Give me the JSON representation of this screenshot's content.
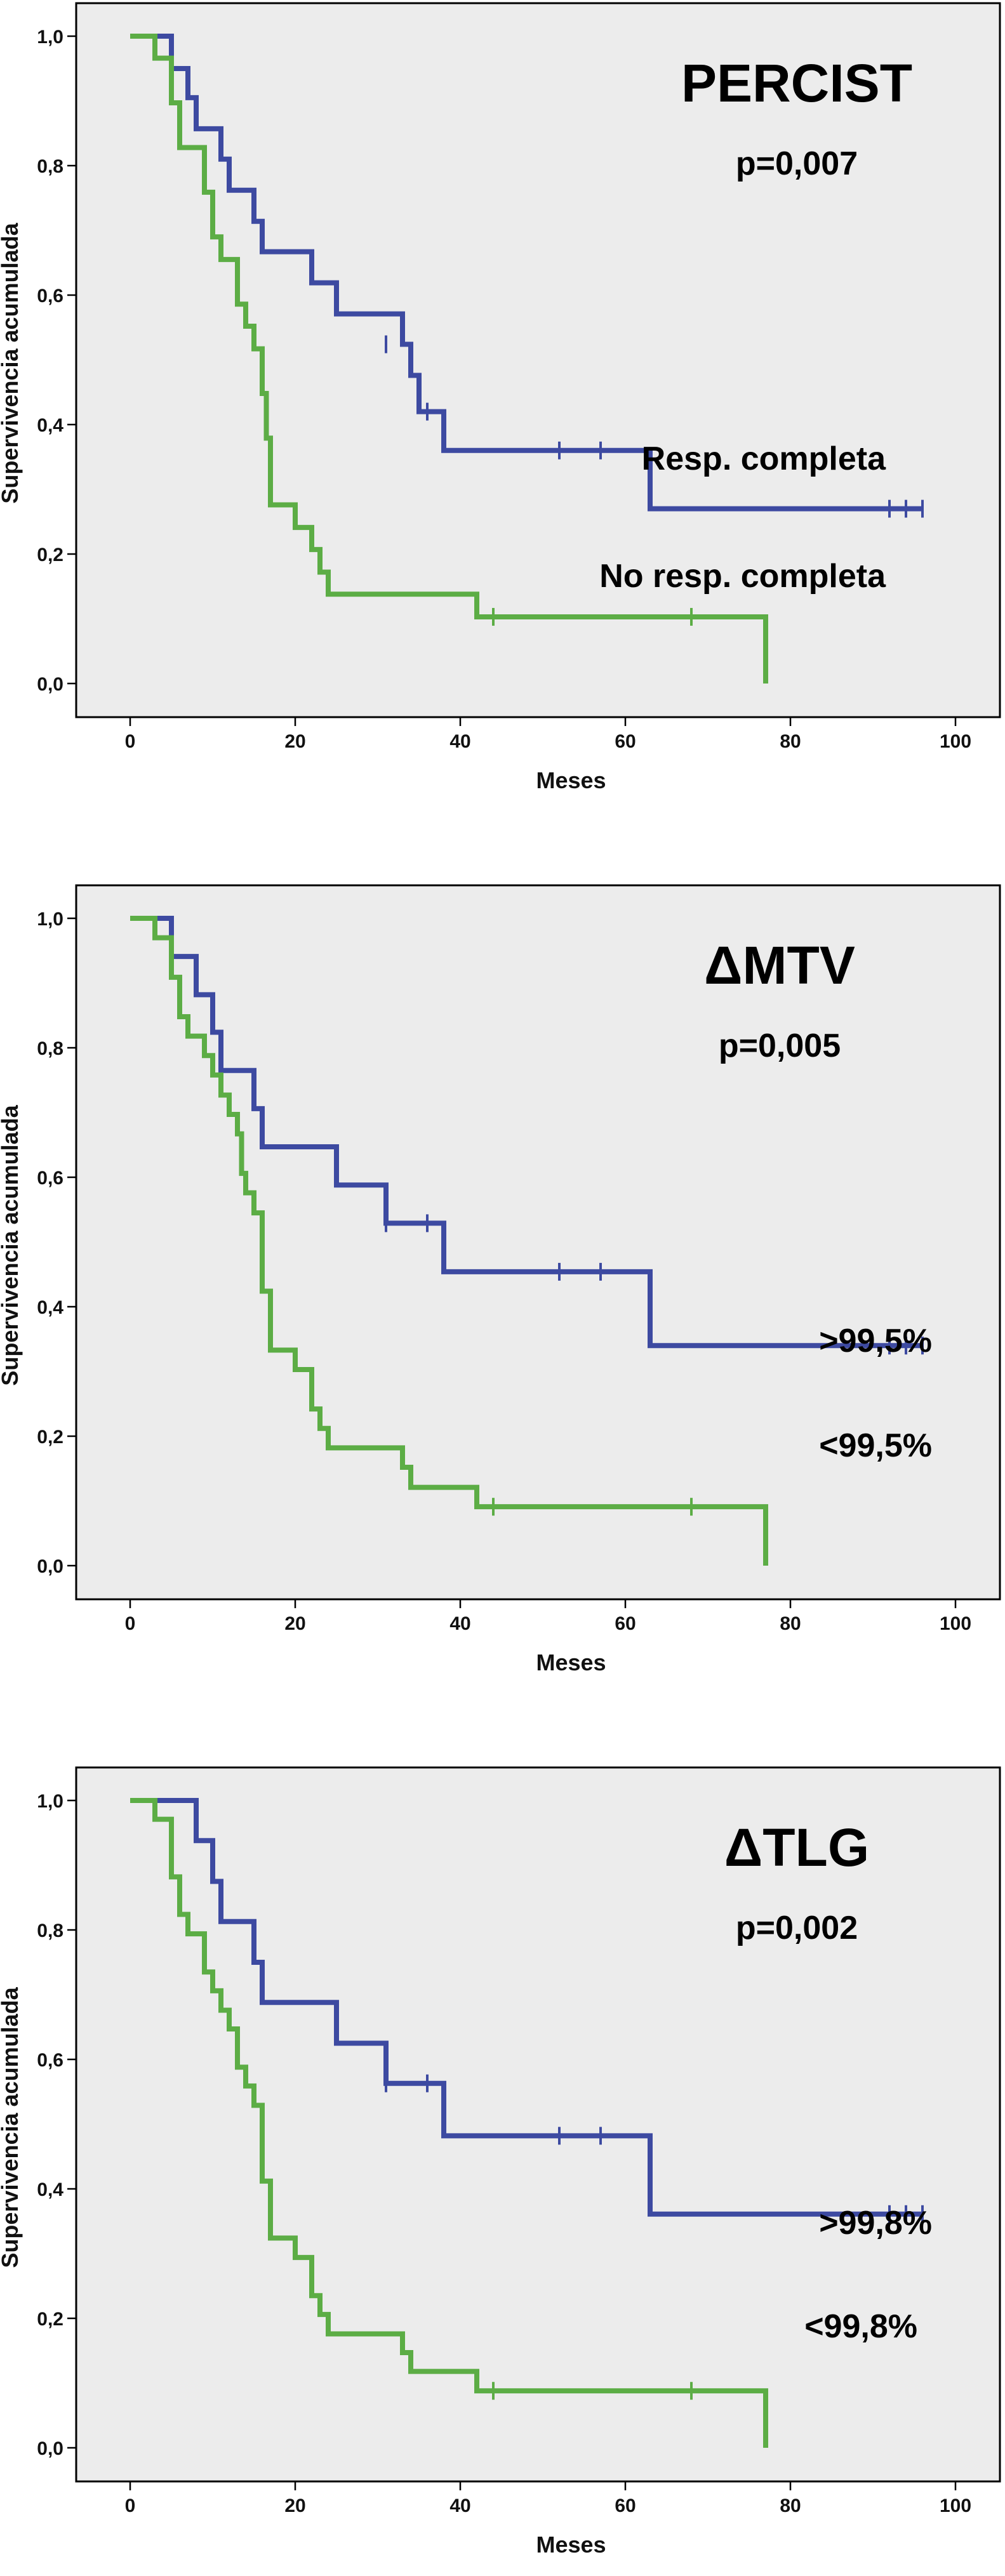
{
  "colors": {
    "background": "#ececec",
    "frame": "#000000",
    "series_resp": "#3d4aa1",
    "series_noresp": "#5cad45"
  },
  "chart_data": [
    {
      "type": "line",
      "title": "PERCIST",
      "pvalue": "p=0,007",
      "xlabel": "Meses",
      "ylabel": "Supervivencia acumulada",
      "xlim": [
        0,
        100
      ],
      "ylim": [
        0,
        1
      ],
      "xticks": [
        "0",
        "20",
        "40",
        "60",
        "80",
        "100"
      ],
      "yticks": [
        "0,0",
        "0,2",
        "0,4",
        "0,6",
        "0,8",
        "1,0"
      ],
      "grid": false,
      "series": [
        {
          "name": "Resp. completa",
          "color_key": "series_resp",
          "steps": [
            [
              0,
              1.0
            ],
            [
              5,
              0.95
            ],
            [
              7,
              0.905
            ],
            [
              8,
              0.857
            ],
            [
              11,
              0.81
            ],
            [
              12,
              0.762
            ],
            [
              15,
              0.714
            ],
            [
              16,
              0.667
            ],
            [
              22,
              0.619
            ],
            [
              25,
              0.571
            ],
            [
              33,
              0.524
            ],
            [
              34,
              0.476
            ],
            [
              35,
              0.42
            ],
            [
              38,
              0.36
            ],
            [
              63,
              0.27
            ],
            [
              96,
              0.27
            ]
          ],
          "censored": [
            [
              31,
              0.524
            ],
            [
              36,
              0.42
            ],
            [
              52,
              0.36
            ],
            [
              57,
              0.36
            ],
            [
              92,
              0.27
            ],
            [
              94,
              0.27
            ],
            [
              96,
              0.27
            ]
          ]
        },
        {
          "name": "No resp. completa",
          "color_key": "series_noresp",
          "steps": [
            [
              0,
              1.0
            ],
            [
              3,
              0.966
            ],
            [
              5,
              0.897
            ],
            [
              6,
              0.828
            ],
            [
              9,
              0.759
            ],
            [
              10,
              0.69
            ],
            [
              11,
              0.655
            ],
            [
              13,
              0.586
            ],
            [
              14,
              0.552
            ],
            [
              15,
              0.517
            ],
            [
              16,
              0.448
            ],
            [
              16.5,
              0.379
            ],
            [
              17,
              0.276
            ],
            [
              20,
              0.241
            ],
            [
              22,
              0.207
            ],
            [
              23,
              0.172
            ],
            [
              24,
              0.138
            ],
            [
              42,
              0.103
            ],
            [
              77,
              0.103
            ],
            [
              77,
              0.0
            ]
          ],
          "censored": [
            [
              44,
              0.103
            ],
            [
              68,
              0.103
            ]
          ]
        }
      ]
    },
    {
      "type": "line",
      "title": "ΔMTV",
      "pvalue": "p=0,005",
      "xlabel": "Meses",
      "ylabel": "Supervivencia acumulada",
      "xlim": [
        0,
        100
      ],
      "ylim": [
        0,
        1
      ],
      "xticks": [
        "0",
        "20",
        "40",
        "60",
        "80",
        "100"
      ],
      "yticks": [
        "0,0",
        "0,2",
        "0,4",
        "0,6",
        "0,8",
        "1,0"
      ],
      "grid": false,
      "series": [
        {
          "name": ">99,5%",
          "color_key": "series_resp",
          "steps": [
            [
              0,
              1.0
            ],
            [
              5,
              0.941
            ],
            [
              8,
              0.882
            ],
            [
              10,
              0.824
            ],
            [
              11,
              0.765
            ],
            [
              15,
              0.706
            ],
            [
              16,
              0.647
            ],
            [
              25,
              0.588
            ],
            [
              31,
              0.529
            ],
            [
              38,
              0.454
            ],
            [
              63,
              0.34
            ],
            [
              96,
              0.34
            ]
          ],
          "censored": [
            [
              31,
              0.529
            ],
            [
              36,
              0.529
            ],
            [
              52,
              0.454
            ],
            [
              57,
              0.454
            ],
            [
              92,
              0.34
            ],
            [
              94,
              0.34
            ],
            [
              96,
              0.34
            ]
          ]
        },
        {
          "name": "<99,5%",
          "color_key": "series_noresp",
          "steps": [
            [
              0,
              1.0
            ],
            [
              3,
              0.97
            ],
            [
              5,
              0.909
            ],
            [
              6,
              0.848
            ],
            [
              7,
              0.818
            ],
            [
              9,
              0.788
            ],
            [
              10,
              0.758
            ],
            [
              11,
              0.727
            ],
            [
              12,
              0.697
            ],
            [
              13,
              0.667
            ],
            [
              13.5,
              0.606
            ],
            [
              14,
              0.576
            ],
            [
              15,
              0.545
            ],
            [
              16,
              0.424
            ],
            [
              17,
              0.333
            ],
            [
              20,
              0.303
            ],
            [
              22,
              0.242
            ],
            [
              23,
              0.212
            ],
            [
              24,
              0.182
            ],
            [
              33,
              0.152
            ],
            [
              34,
              0.121
            ],
            [
              42,
              0.091
            ],
            [
              77,
              0.091
            ],
            [
              77,
              0.0
            ]
          ],
          "censored": [
            [
              44,
              0.091
            ],
            [
              68,
              0.091
            ]
          ]
        }
      ]
    },
    {
      "type": "line",
      "title": "ΔTLG",
      "pvalue": "p=0,002",
      "xlabel": "Meses",
      "ylabel": "Supervivencia acumulada",
      "xlim": [
        0,
        100
      ],
      "ylim": [
        0,
        1
      ],
      "xticks": [
        "0",
        "20",
        "40",
        "60",
        "80",
        "100"
      ],
      "yticks": [
        "0,0",
        "0,2",
        "0,4",
        "0,6",
        "0,8",
        "1,0"
      ],
      "grid": false,
      "series": [
        {
          "name": ">99,8%",
          "color_key": "series_resp",
          "steps": [
            [
              0,
              1.0
            ],
            [
              8,
              0.938
            ],
            [
              10,
              0.875
            ],
            [
              11,
              0.813
            ],
            [
              15,
              0.75
            ],
            [
              16,
              0.688
            ],
            [
              25,
              0.625
            ],
            [
              31,
              0.563
            ],
            [
              38,
              0.482
            ],
            [
              63,
              0.361
            ],
            [
              96,
              0.361
            ]
          ],
          "censored": [
            [
              31,
              0.563
            ],
            [
              36,
              0.563
            ],
            [
              52,
              0.482
            ],
            [
              57,
              0.482
            ],
            [
              92,
              0.361
            ],
            [
              94,
              0.361
            ],
            [
              96,
              0.361
            ]
          ]
        },
        {
          "name": "<99,8%",
          "color_key": "series_noresp",
          "steps": [
            [
              0,
              1.0
            ],
            [
              3,
              0.971
            ],
            [
              5,
              0.882
            ],
            [
              6,
              0.824
            ],
            [
              7,
              0.794
            ],
            [
              9,
              0.735
            ],
            [
              10,
              0.706
            ],
            [
              11,
              0.676
            ],
            [
              12,
              0.647
            ],
            [
              13,
              0.588
            ],
            [
              14,
              0.559
            ],
            [
              15,
              0.529
            ],
            [
              16,
              0.412
            ],
            [
              17,
              0.324
            ],
            [
              20,
              0.294
            ],
            [
              22,
              0.235
            ],
            [
              23,
              0.206
            ],
            [
              24,
              0.176
            ],
            [
              33,
              0.147
            ],
            [
              34,
              0.118
            ],
            [
              42,
              0.088
            ],
            [
              77,
              0.088
            ],
            [
              77,
              0.0
            ]
          ],
          "censored": [
            [
              44,
              0.088
            ],
            [
              68,
              0.088
            ]
          ]
        }
      ]
    }
  ]
}
